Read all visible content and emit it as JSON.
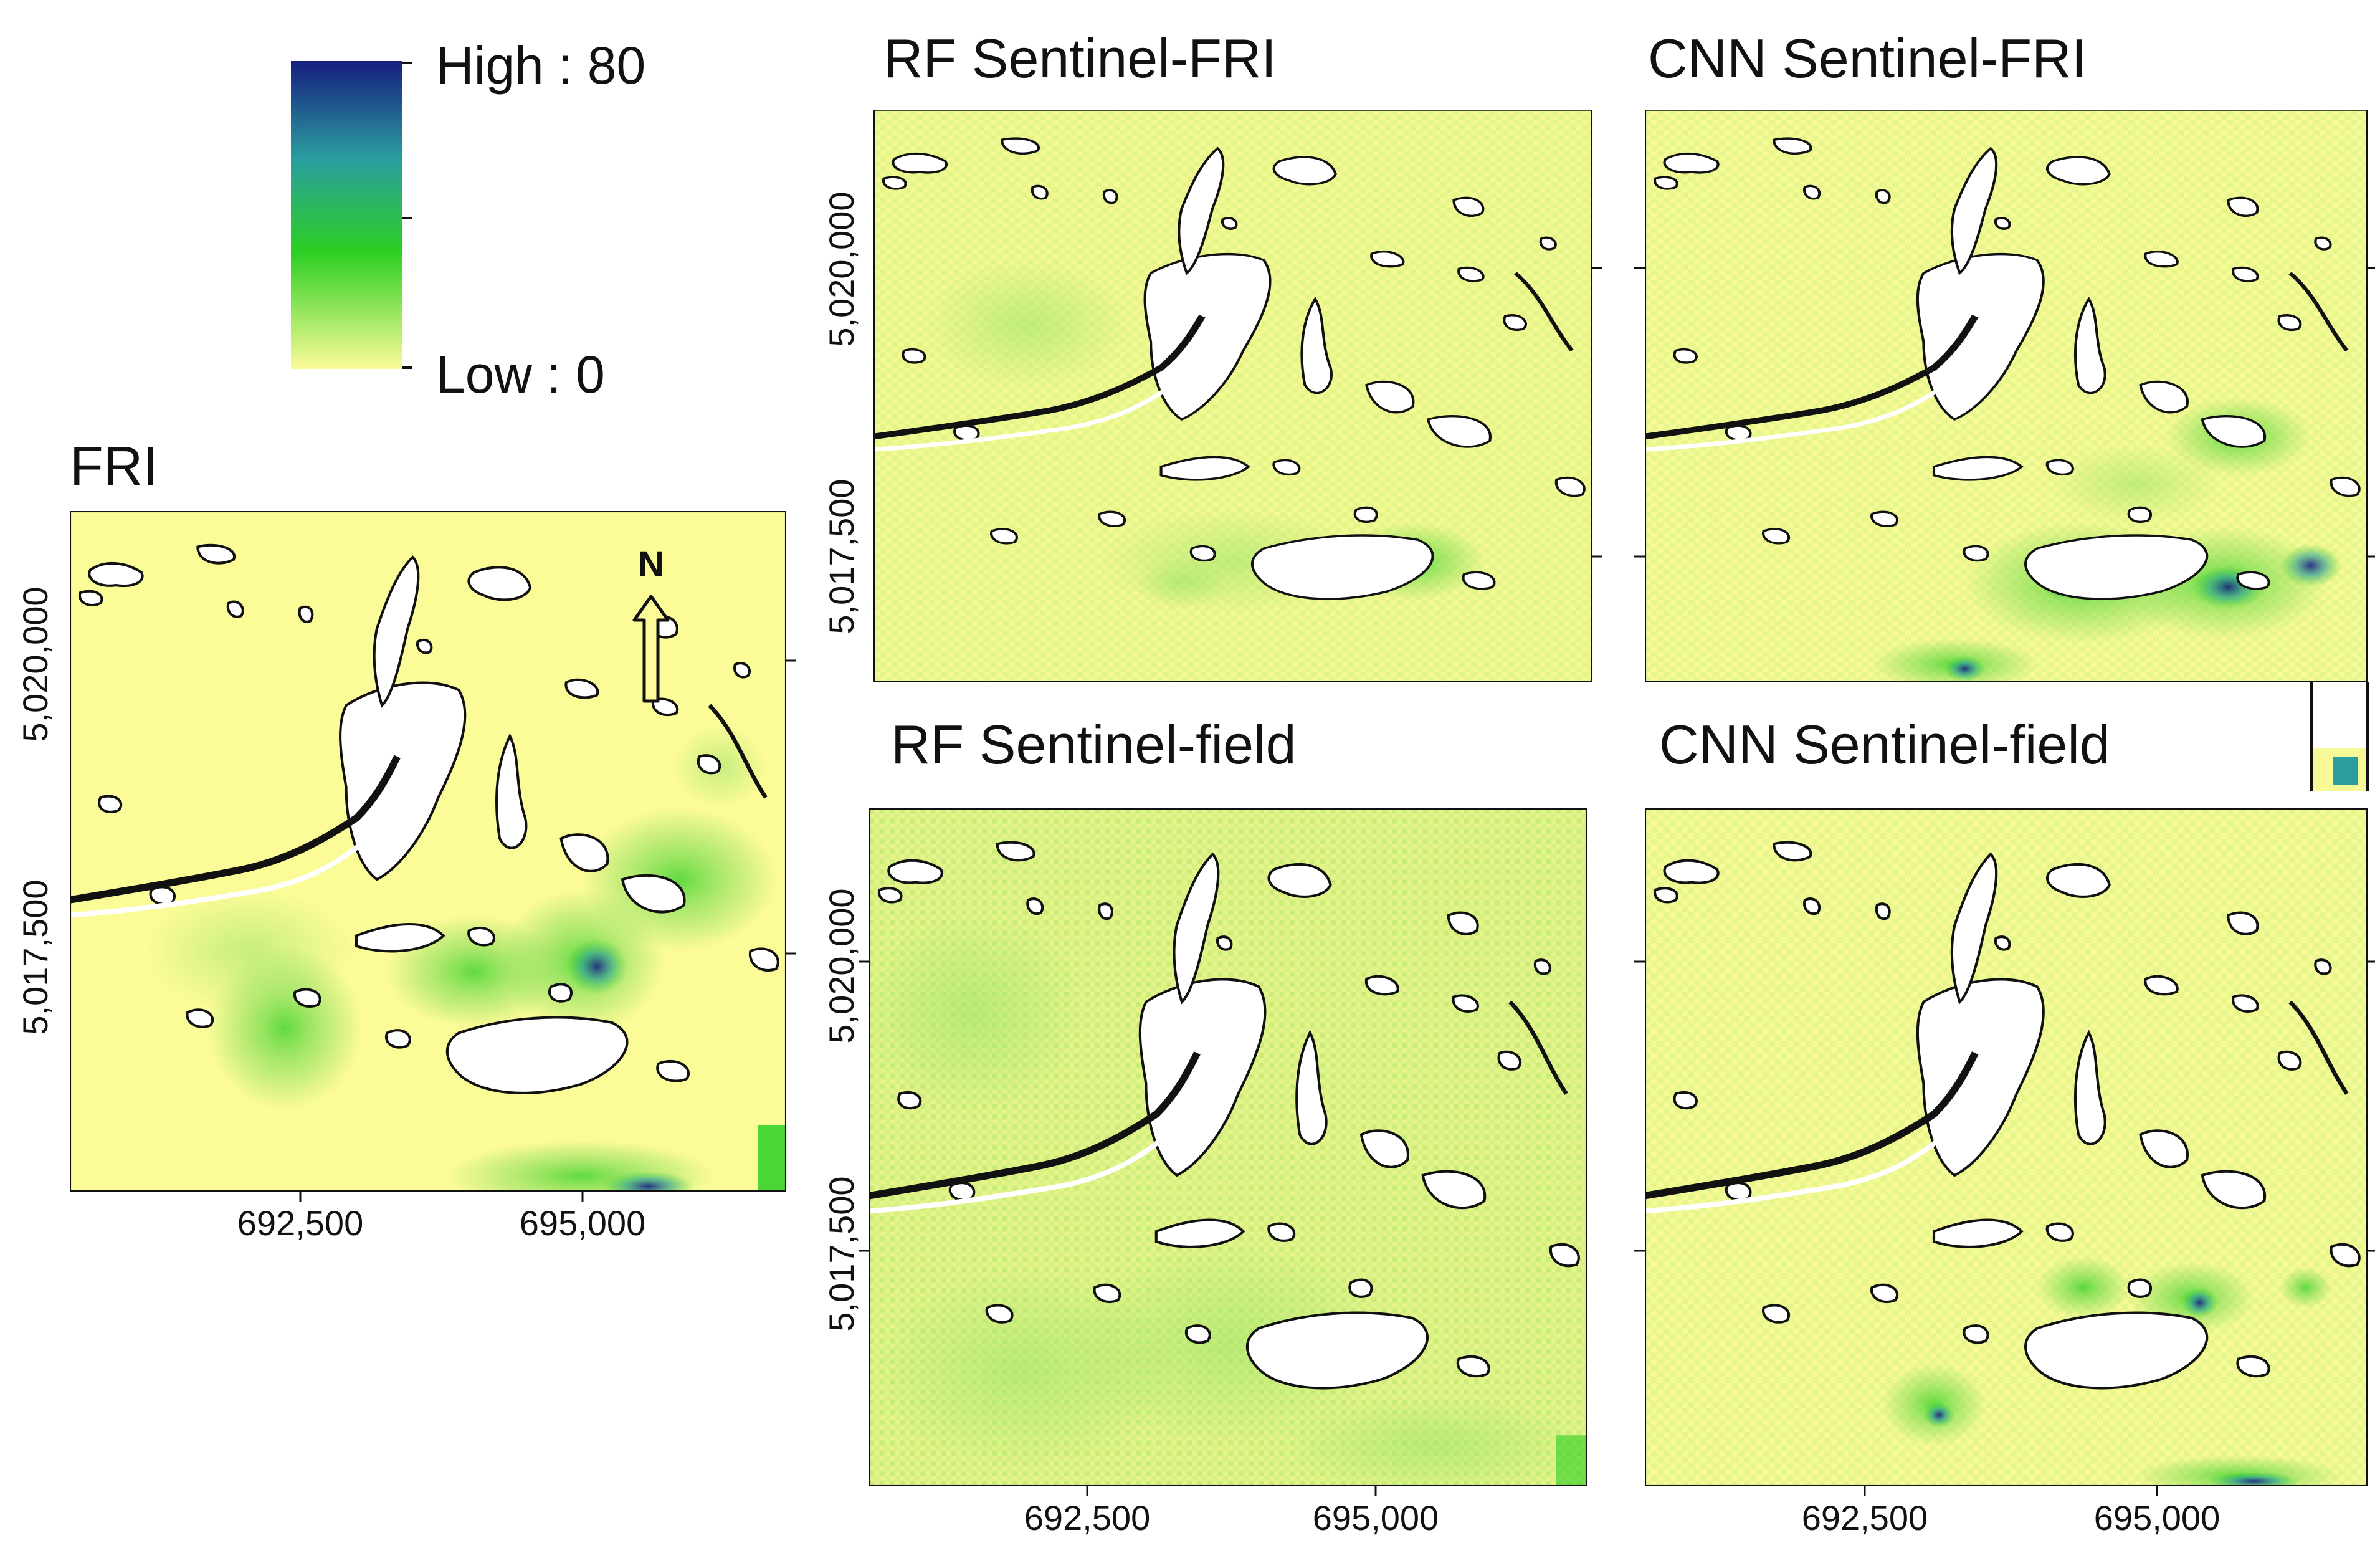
{
  "figure": {
    "legend": {
      "high_label": "High : 80",
      "low_label": "Low : 0",
      "max_value": 80,
      "min_value": 0,
      "ramp_colors": [
        "#fbfb98",
        "#2ccf22",
        "#2a9e9e",
        "#171f80"
      ]
    },
    "panels": [
      {
        "id": "fri",
        "title": "FRI",
        "x_ticks": [
          "692,500",
          "695,000"
        ],
        "y_ticks": [
          "5,020,000",
          "5,017,500"
        ],
        "north_label": "N"
      },
      {
        "id": "rf-sentinel-fri",
        "title": "RF Sentinel-FRI",
        "y_ticks": [
          "5,020,000",
          "5,017,500"
        ]
      },
      {
        "id": "cnn-sentinel-fri",
        "title": "CNN Sentinel-FRI"
      },
      {
        "id": "rf-sentinel-field",
        "title": "RF Sentinel-field",
        "x_ticks": [
          "692,500",
          "695,000"
        ],
        "y_ticks": [
          "5,020,000",
          "5,017,500"
        ]
      },
      {
        "id": "cnn-sentinel-field",
        "title": "CNN Sentinel-field",
        "x_ticks": [
          "692,500",
          "695,000"
        ]
      }
    ],
    "colors": {
      "background_low": "#fbfb98",
      "medium_green": "#7fdc55",
      "high_green": "#2ccf22",
      "teal": "#2a9e9e",
      "dark_blue": "#171f80",
      "water": "#ffffff",
      "outline": "#111111"
    }
  }
}
